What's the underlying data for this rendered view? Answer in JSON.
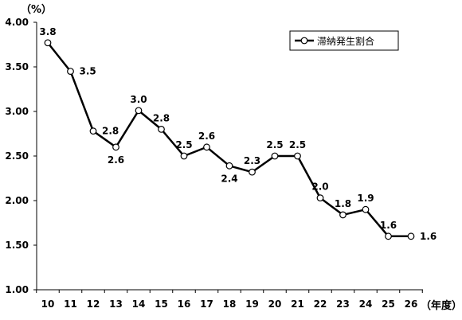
{
  "chart_data": {
    "type": "line",
    "y_unit": "（%）",
    "x_unit": "（年度）",
    "categories": [
      "10",
      "11",
      "12",
      "13",
      "14",
      "15",
      "16",
      "17",
      "18",
      "19",
      "20",
      "21",
      "22",
      "23",
      "24",
      "25",
      "26"
    ],
    "series": [
      {
        "name": "滞納発生割合",
        "values": [
          3.77,
          3.45,
          2.78,
          2.6,
          3.01,
          2.8,
          2.5,
          2.6,
          2.39,
          2.32,
          2.5,
          2.5,
          2.03,
          1.84,
          1.9,
          1.6,
          1.6
        ],
        "labels": [
          "3.8",
          "3.5",
          "2.8",
          "2.6",
          "3.0",
          "2.8",
          "2.5",
          "2.6",
          "2.4",
          "2.3",
          "2.5",
          "2.5",
          "2.0",
          "1.8",
          "1.9",
          "1.6",
          "1.6"
        ]
      }
    ],
    "ylim": [
      1.0,
      4.0
    ],
    "yticks": [
      "1.00",
      "1.50",
      "2.00",
      "2.50",
      "3.00",
      "3.50",
      "4.00"
    ],
    "grid": false,
    "legend": "top-right",
    "line_color": "#000000"
  }
}
